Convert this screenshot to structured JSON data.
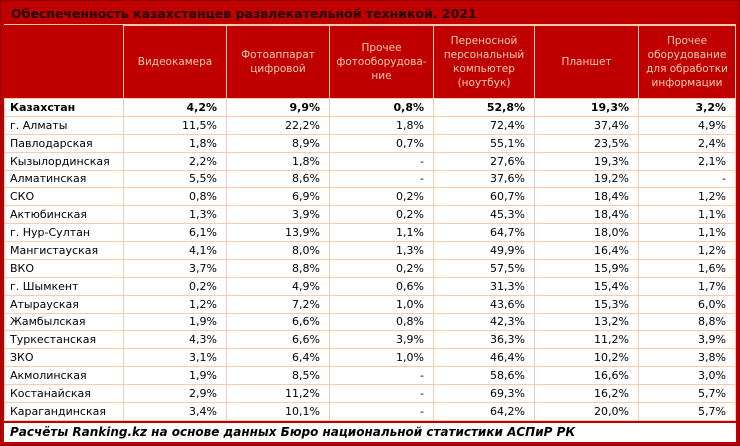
{
  "title": "Обеспеченность казахстанцев развлекательной техникой. 2021",
  "footer_note": "Расчёты Ranking.kz на основе данных Бюро национальной статистики АСПиР РК",
  "colors": {
    "background_red": "#C00000",
    "border_peach": "#F8CBAD",
    "header_text": "#F8CBAD",
    "cell_background": "#FFFFFF",
    "cell_text": "#000000",
    "title_text": "#230000"
  },
  "chart_data": {
    "type": "table",
    "title": "Обеспеченность казахстанцев развлекательной техникой. 2021",
    "columns": [
      "Видеокамера",
      "Фотоаппарат цифровой",
      "Прочее фотооборудова-ние",
      "Переносной персональный компьютер (ноутбук)",
      "Планшет",
      "Прочее оборудование для обработки информации"
    ],
    "rows": [
      {
        "label": "Казахстан",
        "bold": true,
        "values": [
          "4,2%",
          "9,9%",
          "0,8%",
          "52,8%",
          "19,3%",
          "3,2%"
        ]
      },
      {
        "label": "г. Алматы",
        "bold": false,
        "values": [
          "11,5%",
          "22,2%",
          "1,8%",
          "72,4%",
          "37,4%",
          "4,9%"
        ]
      },
      {
        "label": "Павлодарская",
        "bold": false,
        "values": [
          "1,8%",
          "8,9%",
          "0,7%",
          "55,1%",
          "23,5%",
          "2,4%"
        ]
      },
      {
        "label": "Кызылординская",
        "bold": false,
        "values": [
          "2,2%",
          "1,8%",
          "-",
          "27,6%",
          "19,3%",
          "2,1%"
        ]
      },
      {
        "label": "Алматинская",
        "bold": false,
        "values": [
          "5,5%",
          "8,6%",
          "-",
          "37,6%",
          "19,2%",
          "-"
        ]
      },
      {
        "label": "СКО",
        "bold": false,
        "values": [
          "0,8%",
          "6,9%",
          "0,2%",
          "60,7%",
          "18,4%",
          "1,2%"
        ]
      },
      {
        "label": "Актюбинская",
        "bold": false,
        "values": [
          "1,3%",
          "3,9%",
          "0,2%",
          "45,3%",
          "18,4%",
          "1,1%"
        ]
      },
      {
        "label": "г. Нур-Султан",
        "bold": false,
        "values": [
          "6,1%",
          "13,9%",
          "1,1%",
          "64,7%",
          "18,0%",
          "1,1%"
        ]
      },
      {
        "label": "Мангистауская",
        "bold": false,
        "values": [
          "4,1%",
          "8,0%",
          "1,3%",
          "49,9%",
          "16,4%",
          "1,2%"
        ]
      },
      {
        "label": "ВКО",
        "bold": false,
        "values": [
          "3,7%",
          "8,8%",
          "0,2%",
          "57,5%",
          "15,9%",
          "1,6%"
        ]
      },
      {
        "label": "г. Шымкент",
        "bold": false,
        "values": [
          "0,2%",
          "4,9%",
          "0,6%",
          "31,3%",
          "15,4%",
          "1,7%"
        ]
      },
      {
        "label": "Атырауская",
        "bold": false,
        "values": [
          "1,2%",
          "7,2%",
          "1,0%",
          "43,6%",
          "15,3%",
          "6,0%"
        ]
      },
      {
        "label": "Жамбылская",
        "bold": false,
        "values": [
          "1,9%",
          "6,6%",
          "0,8%",
          "42,3%",
          "13,2%",
          "8,8%"
        ]
      },
      {
        "label": "Туркестанская",
        "bold": false,
        "values": [
          "4,3%",
          "6,6%",
          "3,9%",
          "36,3%",
          "11,2%",
          "3,9%"
        ]
      },
      {
        "label": "ЗКО",
        "bold": false,
        "values": [
          "3,1%",
          "6,4%",
          "1,0%",
          "46,4%",
          "10,2%",
          "3,8%"
        ]
      },
      {
        "label": "Акмолинская",
        "bold": false,
        "values": [
          "1,9%",
          "8,5%",
          "-",
          "58,6%",
          "16,6%",
          "3,0%"
        ]
      },
      {
        "label": "Костанайская",
        "bold": false,
        "values": [
          "2,9%",
          "11,2%",
          "-",
          "69,3%",
          "16,2%",
          "5,7%"
        ]
      },
      {
        "label": "Карагандинская",
        "bold": false,
        "values": [
          "3,4%",
          "10,1%",
          "-",
          "64,2%",
          "20,0%",
          "5,7%"
        ]
      }
    ],
    "footer": "Расчёты Ranking.kz на основе данных Бюро национальной статистики АСПиР РК"
  }
}
